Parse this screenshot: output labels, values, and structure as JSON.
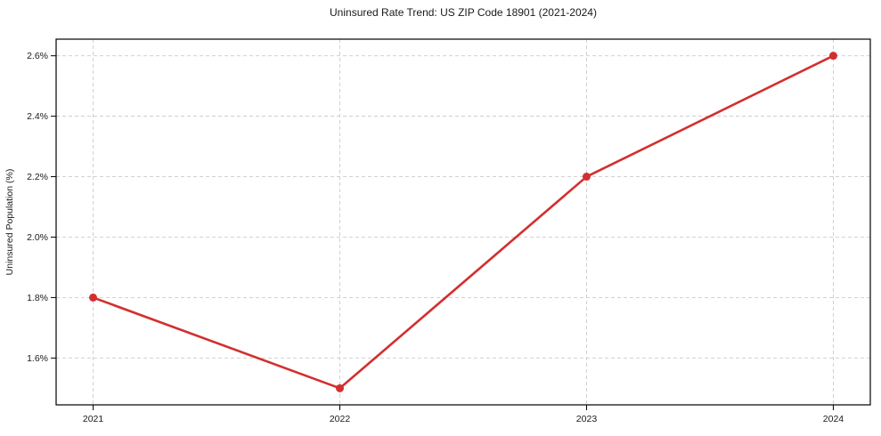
{
  "chart_data": {
    "type": "line",
    "title": "Uninsured Rate Trend: US ZIP Code 18901 (2021-2024)",
    "xlabel": "",
    "ylabel": "Uninsured Population (%)",
    "categories": [
      2021,
      2022,
      2023,
      2024
    ],
    "values": [
      1.8,
      1.5,
      2.2,
      2.6
    ],
    "xtick_labels": [
      "2021",
      "2022",
      "2023",
      "2024"
    ],
    "yticks": [
      1.6,
      1.8,
      2.0,
      2.2,
      2.4,
      2.6
    ],
    "ytick_labels": [
      "1.6%",
      "1.8%",
      "2.0%",
      "2.2%",
      "2.4%",
      "2.6%"
    ],
    "xlim": [
      2020.85,
      2024.15
    ],
    "ylim": [
      1.445,
      2.655
    ],
    "grid": true,
    "legend": "none",
    "line_color": "#d32f2f",
    "marker": "circle",
    "grid_color": "#cccccc",
    "frame_color": "#000000"
  }
}
